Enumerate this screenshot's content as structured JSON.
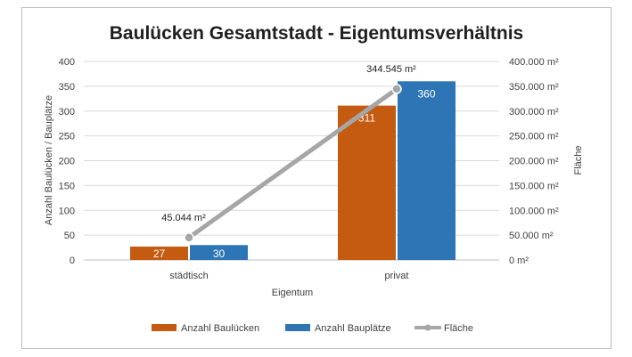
{
  "chart_data": {
    "type": "bar",
    "title": "Baulücken Gesamtstadt - Eigentumsverhältnis",
    "xlabel": "Eigentum",
    "ylabel": "Anzahl Baulücken / Bauplätze",
    "y2label": "Fläche",
    "categories": [
      "städtisch",
      "privat"
    ],
    "ylim": [
      0,
      400
    ],
    "yticks": [
      "0",
      "50",
      "100",
      "150",
      "200",
      "250",
      "300",
      "350",
      "400"
    ],
    "y2lim": [
      0,
      400000
    ],
    "y2ticks": [
      "0 m²",
      "50.000 m²",
      "100.000 m²",
      "150.000 m²",
      "200.000 m²",
      "250.000 m²",
      "300.000 m²",
      "350.000 m²",
      "400.000 m²"
    ],
    "series": [
      {
        "name": "Anzahl Baulücken",
        "type": "bar",
        "axis": "left",
        "color": "#C55A11",
        "values": [
          27,
          311
        ],
        "labels": [
          "27",
          "311"
        ]
      },
      {
        "name": "Anzahl Bauplätze",
        "type": "bar",
        "axis": "left",
        "color": "#2E75B6",
        "values": [
          30,
          360
        ],
        "labels": [
          "30",
          "360"
        ]
      },
      {
        "name": "Fläche",
        "type": "line",
        "axis": "right",
        "color": "#A6A6A6",
        "values": [
          45044,
          344545
        ],
        "labels": [
          "45.044 m²",
          "344.545 m²"
        ]
      }
    ],
    "legend_position": "bottom"
  }
}
